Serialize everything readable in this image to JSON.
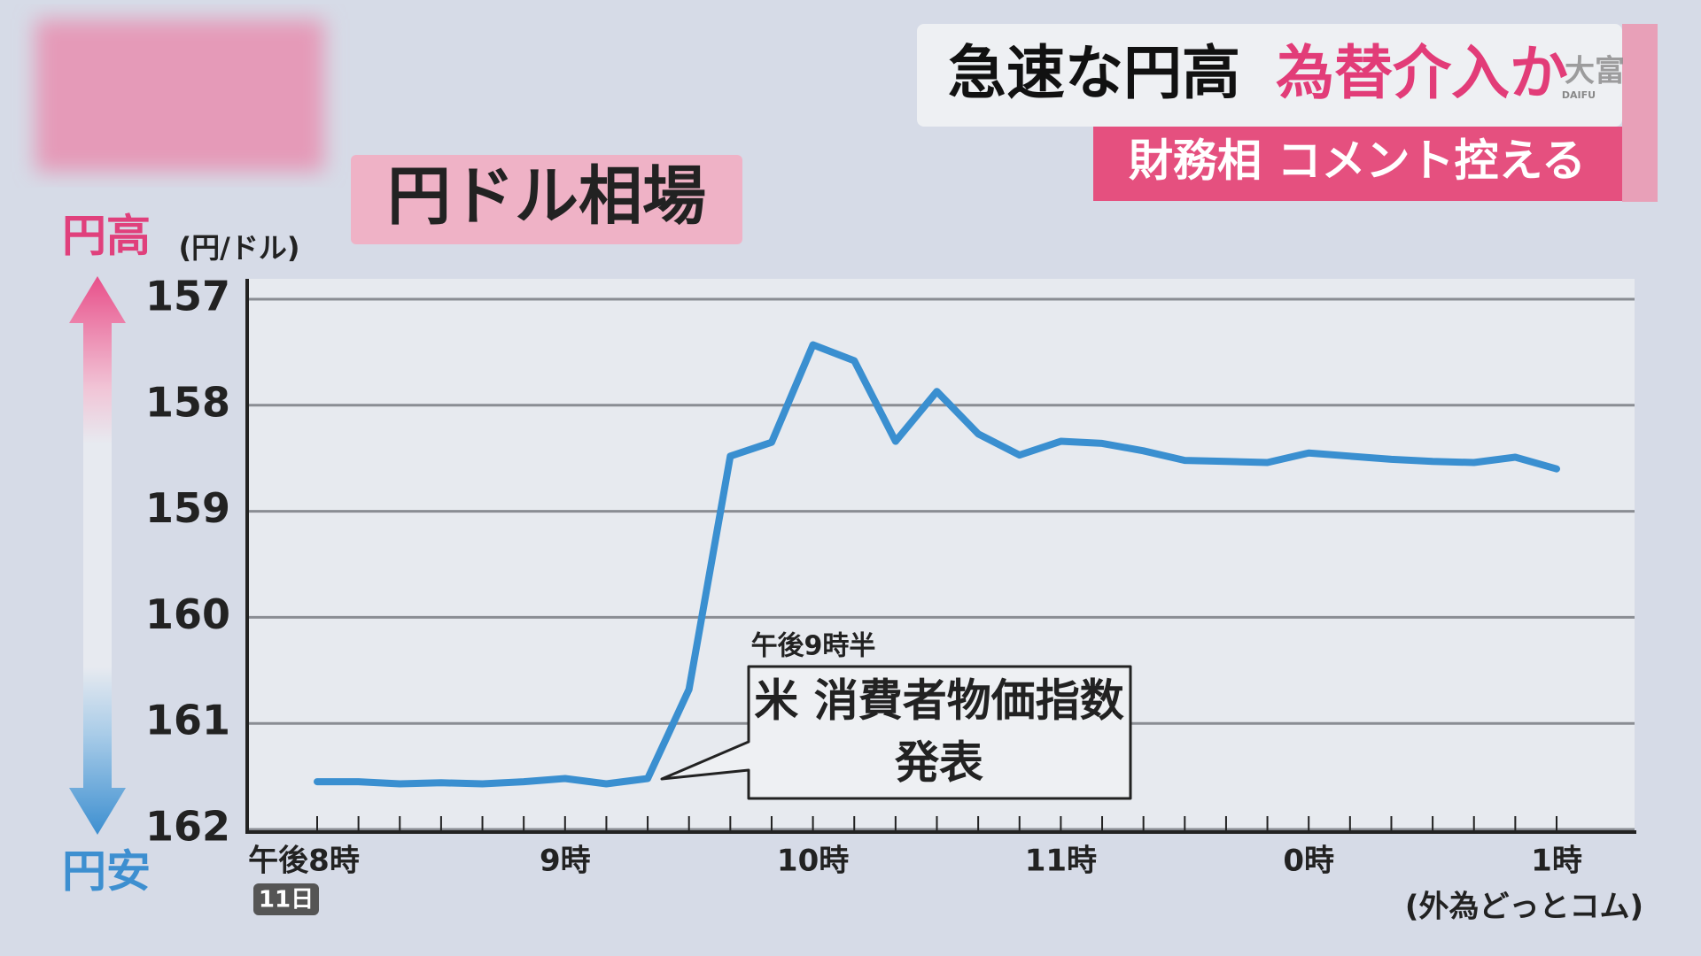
{
  "header": {
    "headline": "急速な円高",
    "headline_emphasis": "為替介入か",
    "subheadline": "財務相 コメント控える",
    "logo": "大富",
    "logo_sub": "DAIFU"
  },
  "chart_data": {
    "type": "line",
    "title": "円ドル相場",
    "y_top_label": "円高",
    "y_bottom_label": "円安",
    "y_unit": "(円/ドル)",
    "categories": [
      "午後8時",
      null,
      null,
      null,
      null,
      null,
      "9時",
      null,
      null,
      null,
      null,
      null,
      "10時",
      null,
      null,
      null,
      null,
      null,
      "11時",
      null,
      null,
      null,
      null,
      null,
      "0時",
      null,
      null,
      null,
      null,
      null,
      "1時"
    ],
    "date_badge": "11日",
    "series": [
      {
        "name": "円ドル相場",
        "color": "#3a8fd0",
        "values": [
          161.55,
          161.55,
          161.57,
          161.56,
          161.57,
          161.55,
          161.52,
          161.57,
          161.52,
          160.68,
          158.48,
          158.35,
          157.43,
          157.58,
          158.34,
          157.87,
          158.27,
          158.47,
          158.34,
          158.36,
          158.43,
          158.52,
          158.53,
          158.54,
          158.45,
          158.48,
          158.51,
          158.53,
          158.54,
          158.49,
          158.6
        ]
      }
    ],
    "ylim": [
      162,
      157
    ],
    "yticks": [
      157,
      158,
      159,
      160,
      161,
      162
    ],
    "grid": true,
    "annotation": {
      "time": "午後9時半",
      "lines": [
        "米 消費者物価指数",
        "発表"
      ]
    },
    "source": "(外為どっとコム)"
  }
}
